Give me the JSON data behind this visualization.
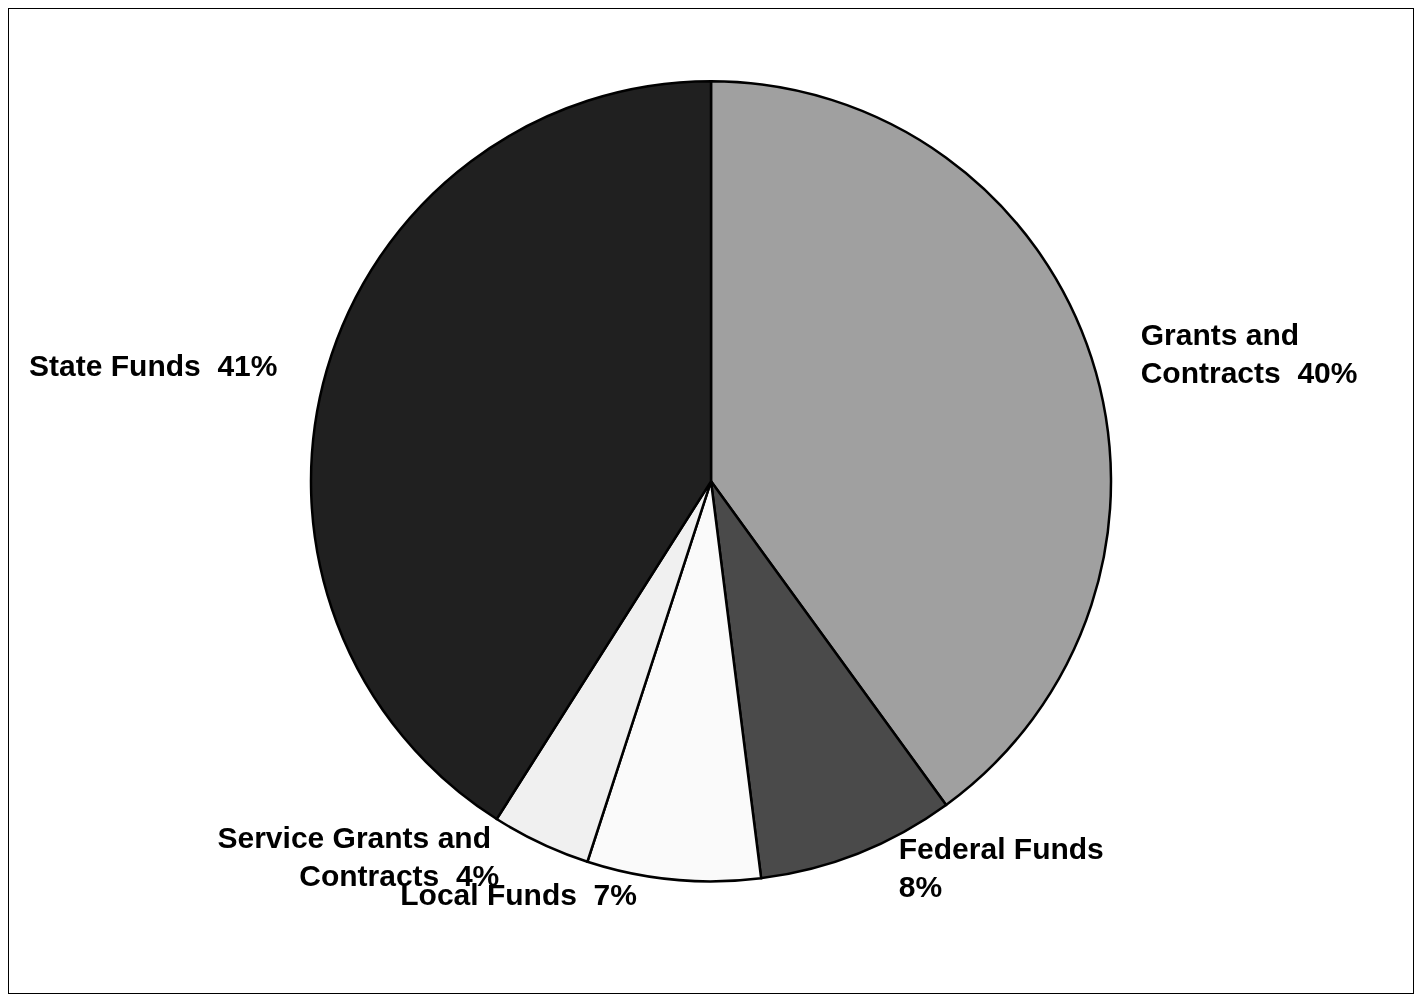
{
  "chart_data": {
    "type": "pie",
    "categories": [
      "Grants and Contracts",
      "Federal Funds",
      "Local Funds",
      "Service Grants and Contracts",
      "State Funds"
    ],
    "values": [
      40,
      8,
      7,
      4,
      41
    ],
    "value_labels": [
      "40%",
      "8%",
      "7%",
      "4%",
      "41%"
    ],
    "colors": [
      "#a0a0a0",
      "#4a4a4a",
      "#fafafa",
      "#f0f0f0",
      "#202020"
    ],
    "legend": false
  }
}
